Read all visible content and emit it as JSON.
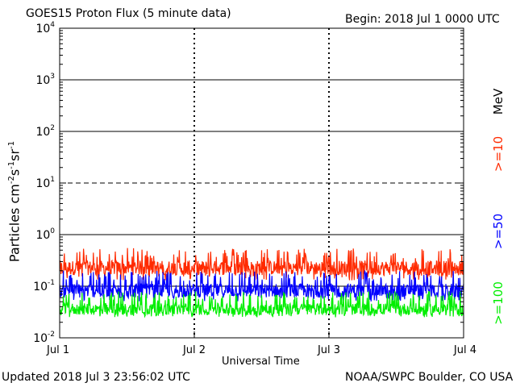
{
  "title": "GOES15 Proton Flux (5 minute data)",
  "begin": "Begin: 2018 Jul 1 0000 UTC",
  "updated": "Updated 2018 Jul  3 23:56:02 UTC",
  "credit": "NOAA/SWPC Boulder, CO USA",
  "chart_data": {
    "type": "line",
    "title": "GOES15 Proton Flux (5 minute data)",
    "xlabel": "Universal Time",
    "ylabel": "Particles cm-2s-1sr-1",
    "yscale": "log",
    "ylim": [
      0.01,
      10000
    ],
    "xlim_days": [
      0,
      3
    ],
    "x_ticks": [
      "Jul 1",
      "Jul 2",
      "Jul 3",
      "Jul 4"
    ],
    "y_ticks": [
      "10-2",
      "10-1",
      "100",
      "101",
      "102",
      "103",
      "104"
    ],
    "legend_unit": "MeV",
    "series": [
      {
        "name": ">=10",
        "color": "#ff2a00",
        "range": [
          0.13,
          0.55
        ],
        "typical": 0.22
      },
      {
        "name": ">=50",
        "color": "#0000ff",
        "range": [
          0.05,
          0.2
        ],
        "typical": 0.08
      },
      {
        "name": ">=100",
        "color": "#00ee00",
        "range": [
          0.025,
          0.08
        ],
        "typical": 0.035
      }
    ]
  }
}
